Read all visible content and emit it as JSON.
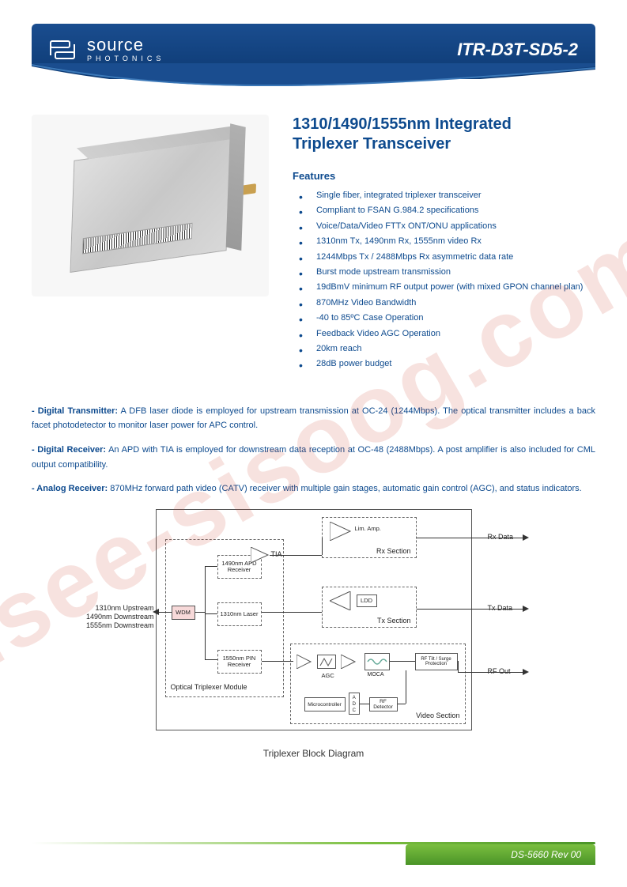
{
  "watermark": "isee-sisoog.com",
  "header": {
    "brand": "source",
    "brand_sub": "PHOTONICS",
    "part_number": "ITR-D3T-SD5-2",
    "banner_bg_color": "#15508f",
    "swoosh_color": "#0d3a73"
  },
  "title_line1": "1310/1490/1555nm Integrated",
  "title_line2": "Triplexer Transceiver",
  "features_heading": "Features",
  "features": [
    "Single fiber, integrated triplexer transceiver",
    "Compliant to FSAN G.984.2 specifications",
    "Voice/Data/Video FTTx ONT/ONU applications",
    "1310nm Tx, 1490nm Rx, 1555nm video Rx",
    "1244Mbps Tx / 2488Mbps Rx asymmetric data rate",
    "Burst mode upstream transmission",
    "19dBmV minimum RF output power (with mixed GPON channel plan)",
    "870MHz Video Bandwidth",
    "-40 to 85ºC Case Operation",
    "Feedback Video AGC Operation",
    "20km reach",
    "28dB power budget"
  ],
  "sections": {
    "dtx_label": "- Digital Transmitter:",
    "dtx_text": " A DFB laser diode is employed for upstream transmission at OC-24 (1244Mbps).   The optical transmitter includes a back facet photodetector to monitor laser power for APC control.",
    "drx_label": "- Digital Receiver:",
    "drx_text": " An APD with TIA is employed for downstream data reception at OC-48 (2488Mbps). A post amplifier is also included for CML output compatibility.",
    "arx_label": "- Analog Receiver:",
    "arx_text": " 870MHz forward path video (CATV) receiver with multiple gain stages, automatic gain control (AGC), and status indicators."
  },
  "diagram": {
    "caption": "Triplexer Block Diagram",
    "ext_labels": {
      "upstream": "1310nm Upstream",
      "down1": "1490nm Downstream",
      "down2": "1555nm Downstream",
      "rx_data": "Rx Data",
      "tx_data": "Tx Data",
      "rf_out": "RF Out"
    },
    "blocks": {
      "wdm": "WDM",
      "apd_rx": "1490nm APD Receiver",
      "tia": "TIA",
      "laser": "1310nm Laser",
      "pin_rx": "1550nm PIN Receiver",
      "optical_module": "Optical Triplexer Module",
      "lim_amp": "Lim. Amp.",
      "ldd": "LDD",
      "rx_section": "Rx Section",
      "tx_section": "Tx Section",
      "video_section": "Video Section",
      "agc": "AGC",
      "moca": "MOCA",
      "rf_filter": "RF Tilt / Surge Protection",
      "micro": "Microcontroller",
      "adc": "A D C",
      "rf_det": "RF Detector"
    }
  },
  "footer": {
    "rev": "DS-5660 Rev 00",
    "bar_color": "#6fb53a"
  }
}
